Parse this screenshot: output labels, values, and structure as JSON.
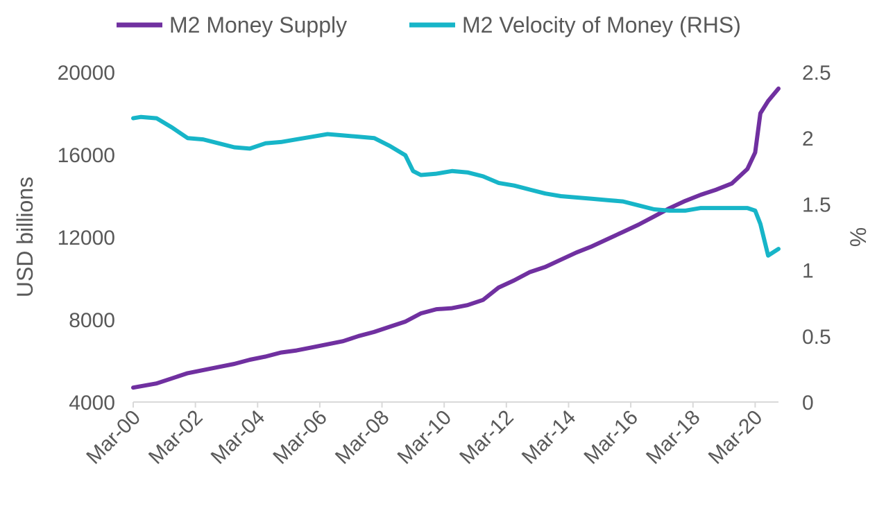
{
  "chart_data": {
    "type": "line",
    "title": "",
    "xlabel": "",
    "ylabel_left": "USD billions",
    "ylabel_right": "%",
    "ylim_left": [
      4000,
      20000
    ],
    "ylim_right": [
      0,
      2.5
    ],
    "xlim": [
      "2000-03",
      "2020-12"
    ],
    "grid": false,
    "legend_position": "top",
    "left_ticks": [
      "20000",
      "16000",
      "12000",
      "8000",
      "4000"
    ],
    "left_tick_values": [
      20000,
      16000,
      12000,
      8000,
      4000
    ],
    "right_ticks": [
      "2.5",
      "2",
      "1.5",
      "1",
      "0.5",
      "0"
    ],
    "right_tick_values": [
      2.5,
      2,
      1.5,
      1,
      0.5,
      0
    ],
    "x_ticks": [
      "Mar-00",
      "Mar-02",
      "Mar-04",
      "Mar-06",
      "Mar-08",
      "Mar-10",
      "Mar-12",
      "Mar-14",
      "Mar-16",
      "Mar-18",
      "Mar-20"
    ],
    "x_tick_dates": [
      "2000-03",
      "2002-03",
      "2004-03",
      "2006-03",
      "2008-03",
      "2010-03",
      "2012-03",
      "2014-03",
      "2016-03",
      "2018-03",
      "2020-03"
    ],
    "series": [
      {
        "name": "M2 Money Supply",
        "axis": "left",
        "color": "#7030A0",
        "x": [
          "2000-03",
          "2000-12",
          "2001-06",
          "2001-12",
          "2002-06",
          "2002-12",
          "2003-06",
          "2003-12",
          "2004-06",
          "2004-12",
          "2005-06",
          "2005-12",
          "2006-06",
          "2006-12",
          "2007-06",
          "2007-12",
          "2008-06",
          "2008-12",
          "2009-06",
          "2009-12",
          "2010-06",
          "2010-12",
          "2011-06",
          "2011-12",
          "2012-06",
          "2012-12",
          "2013-06",
          "2013-12",
          "2014-06",
          "2014-12",
          "2015-06",
          "2015-12",
          "2016-06",
          "2016-12",
          "2017-06",
          "2017-12",
          "2018-06",
          "2018-12",
          "2019-06",
          "2019-12",
          "2020-03",
          "2020-05",
          "2020-08",
          "2020-12"
        ],
        "values": [
          4700,
          4900,
          5150,
          5400,
          5550,
          5700,
          5850,
          6050,
          6200,
          6400,
          6500,
          6650,
          6800,
          6950,
          7200,
          7400,
          7650,
          7900,
          8300,
          8500,
          8550,
          8700,
          8950,
          9550,
          9900,
          10300,
          10550,
          10900,
          11250,
          11550,
          11900,
          12250,
          12600,
          13000,
          13400,
          13750,
          14050,
          14300,
          14600,
          15300,
          16100,
          18000,
          18600,
          19200
        ]
      },
      {
        "name": "M2 Velocity of Money (RHS)",
        "axis": "right",
        "color": "#17B5C8",
        "x": [
          "2000-03",
          "2000-06",
          "2000-12",
          "2001-06",
          "2001-12",
          "2002-06",
          "2002-12",
          "2003-06",
          "2003-12",
          "2004-06",
          "2004-12",
          "2005-06",
          "2005-12",
          "2006-06",
          "2006-12",
          "2007-06",
          "2007-12",
          "2008-06",
          "2008-12",
          "2009-03",
          "2009-06",
          "2009-12",
          "2010-06",
          "2010-12",
          "2011-06",
          "2011-12",
          "2012-06",
          "2012-12",
          "2013-06",
          "2013-12",
          "2014-06",
          "2014-12",
          "2015-06",
          "2015-12",
          "2016-06",
          "2016-12",
          "2017-06",
          "2017-12",
          "2018-06",
          "2018-12",
          "2019-06",
          "2019-12",
          "2020-03",
          "2020-05",
          "2020-08",
          "2020-12"
        ],
        "values": [
          2.15,
          2.16,
          2.15,
          2.08,
          2.0,
          1.99,
          1.96,
          1.93,
          1.92,
          1.96,
          1.97,
          1.99,
          2.01,
          2.03,
          2.02,
          2.01,
          2.0,
          1.94,
          1.87,
          1.75,
          1.72,
          1.73,
          1.75,
          1.74,
          1.71,
          1.66,
          1.64,
          1.61,
          1.58,
          1.56,
          1.55,
          1.54,
          1.53,
          1.52,
          1.49,
          1.46,
          1.45,
          1.45,
          1.47,
          1.47,
          1.47,
          1.47,
          1.45,
          1.35,
          1.11,
          1.16
        ]
      }
    ]
  }
}
